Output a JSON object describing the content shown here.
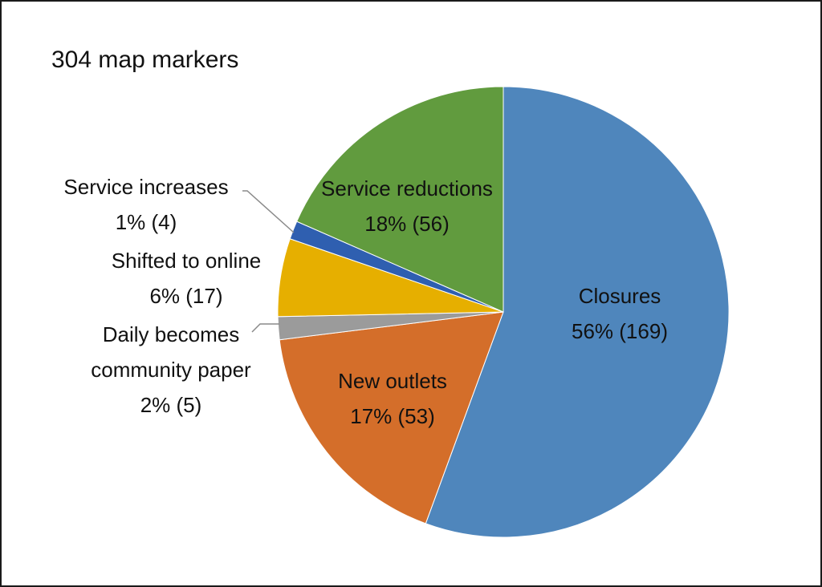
{
  "chart_data": {
    "type": "pie",
    "title": "304 map markers",
    "total": 304,
    "slices": [
      {
        "name": "Closures",
        "value": 169,
        "percent_label": "56% (169)",
        "color": "#4F86BC"
      },
      {
        "name": "New outlets",
        "value": 53,
        "percent_label": "17% (53)",
        "color": "#D46E2A"
      },
      {
        "name": "Daily becomes community paper",
        "value": 5,
        "percent_label": "2% (5)",
        "color": "#9B9B9B"
      },
      {
        "name": "Shifted to online",
        "value": 17,
        "percent_label": "6% (17)",
        "color": "#E6AF00"
      },
      {
        "name": "Service increases",
        "value": 4,
        "percent_label": "1% (4)",
        "color": "#2F5FB0"
      },
      {
        "name": "Service reductions",
        "value": 56,
        "percent_label": "18% (56)",
        "color": "#619B3E"
      }
    ],
    "legend": "none",
    "labels": "data labels with leader lines for small slices"
  }
}
